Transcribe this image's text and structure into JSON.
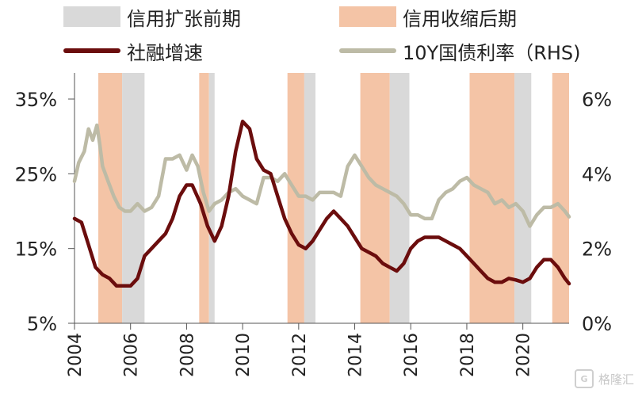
{
  "legend": {
    "expansion": "信用扩张前期",
    "contraction": "信用收缩后期",
    "social_financing": "社融增速",
    "bond_yield": "10Y国债利率（RHS)"
  },
  "colors": {
    "expansion": "#d9d9d9",
    "contraction": "#f4c4a6",
    "social_financing": "#6b0d0d",
    "bond_yield": "#bdbba6"
  },
  "watermark": {
    "text": "格隆汇"
  },
  "chart_data": {
    "type": "line",
    "title": "",
    "xlabel": "",
    "ylabel": "",
    "x_range": [
      2004.0,
      2021.65
    ],
    "x_ticks": [
      "2004",
      "2006",
      "2008",
      "2010",
      "2012",
      "2014",
      "2016",
      "2018",
      "2020"
    ],
    "x_tick_values": [
      2004,
      2006,
      2008,
      2010,
      2012,
      2014,
      2016,
      2018,
      2020
    ],
    "y_left": {
      "range": [
        5,
        38.5
      ],
      "ticks": [
        5,
        15,
        25,
        35
      ],
      "tick_labels": [
        "5%",
        "15%",
        "25%",
        "35%"
      ]
    },
    "y_right": {
      "range": [
        0,
        6.7
      ],
      "ticks": [
        0,
        2,
        4,
        6
      ],
      "tick_labels": [
        "0%",
        "2%",
        "4%",
        "6%"
      ]
    },
    "shaded_periods": [
      {
        "kind": "contraction",
        "start": 2004.85,
        "end": 2005.7
      },
      {
        "kind": "expansion",
        "start": 2005.7,
        "end": 2006.5
      },
      {
        "kind": "contraction",
        "start": 2008.45,
        "end": 2008.8
      },
      {
        "kind": "expansion",
        "start": 2008.8,
        "end": 2009.0
      },
      {
        "kind": "contraction",
        "start": 2011.6,
        "end": 2012.2
      },
      {
        "kind": "expansion",
        "start": 2012.2,
        "end": 2012.6
      },
      {
        "kind": "contraction",
        "start": 2014.2,
        "end": 2015.25
      },
      {
        "kind": "expansion",
        "start": 2015.25,
        "end": 2015.95
      },
      {
        "kind": "contraction",
        "start": 2018.1,
        "end": 2019.7
      },
      {
        "kind": "expansion",
        "start": 2019.7,
        "end": 2020.3
      },
      {
        "kind": "contraction",
        "start": 2021.05,
        "end": 2021.65
      }
    ],
    "series": [
      {
        "name": "社融增速",
        "axis": "left",
        "x": [
          2004.0,
          2004.25,
          2004.5,
          2004.75,
          2005.0,
          2005.25,
          2005.5,
          2005.75,
          2006.0,
          2006.25,
          2006.5,
          2006.75,
          2007.0,
          2007.25,
          2007.5,
          2007.75,
          2008.0,
          2008.2,
          2008.5,
          2008.75,
          2009.0,
          2009.25,
          2009.5,
          2009.75,
          2010.0,
          2010.25,
          2010.5,
          2010.75,
          2011.0,
          2011.25,
          2011.5,
          2011.75,
          2012.0,
          2012.25,
          2012.5,
          2012.75,
          2013.0,
          2013.25,
          2013.5,
          2013.75,
          2014.0,
          2014.25,
          2014.5,
          2014.75,
          2015.0,
          2015.25,
          2015.5,
          2015.75,
          2016.0,
          2016.25,
          2016.5,
          2016.75,
          2017.0,
          2017.25,
          2017.5,
          2017.75,
          2018.0,
          2018.25,
          2018.5,
          2018.75,
          2019.0,
          2019.25,
          2019.5,
          2019.75,
          2020.0,
          2020.25,
          2020.5,
          2020.75,
          2021.0,
          2021.25,
          2021.5,
          2021.65
        ],
        "values": [
          19,
          18.5,
          15.5,
          12.5,
          11.5,
          11,
          10,
          10,
          10,
          11,
          14,
          15,
          16,
          17,
          19,
          22,
          23.5,
          23.5,
          21,
          18,
          16,
          18,
          22,
          28,
          32,
          31,
          27,
          25.5,
          25,
          22,
          19,
          17,
          15.5,
          15,
          16,
          17.5,
          19,
          20,
          19,
          18,
          16.5,
          15,
          14.5,
          14,
          13,
          12.5,
          12,
          13,
          15,
          16,
          16.5,
          16.5,
          16.5,
          16,
          15.5,
          15,
          14,
          13,
          12,
          11,
          10.5,
          10.5,
          11,
          10.8,
          10.5,
          11,
          12.5,
          13.5,
          13.5,
          12.5,
          11,
          10.3
        ]
      },
      {
        "name": "10Y国债利率（RHS)",
        "axis": "right",
        "x": [
          2004.0,
          2004.15,
          2004.35,
          2004.5,
          2004.65,
          2004.8,
          2004.9,
          2005.0,
          2005.2,
          2005.4,
          2005.6,
          2005.8,
          2006.0,
          2006.25,
          2006.5,
          2006.75,
          2007.0,
          2007.25,
          2007.5,
          2007.75,
          2008.0,
          2008.2,
          2008.4,
          2008.6,
          2008.8,
          2009.0,
          2009.25,
          2009.5,
          2009.75,
          2010.0,
          2010.25,
          2010.5,
          2010.75,
          2011.0,
          2011.25,
          2011.5,
          2011.75,
          2012.0,
          2012.25,
          2012.5,
          2012.75,
          2013.0,
          2013.25,
          2013.5,
          2013.75,
          2014.0,
          2014.25,
          2014.5,
          2014.75,
          2015.0,
          2015.25,
          2015.5,
          2015.75,
          2016.0,
          2016.25,
          2016.5,
          2016.75,
          2017.0,
          2017.25,
          2017.5,
          2017.75,
          2018.0,
          2018.25,
          2018.5,
          2018.75,
          2019.0,
          2019.25,
          2019.5,
          2019.75,
          2020.0,
          2020.25,
          2020.5,
          2020.75,
          2021.0,
          2021.25,
          2021.5,
          2021.65
        ],
        "values": [
          3.8,
          4.3,
          4.6,
          5.2,
          4.9,
          5.3,
          4.8,
          4.2,
          3.8,
          3.4,
          3.1,
          3.0,
          3.0,
          3.2,
          3.0,
          3.1,
          3.4,
          4.4,
          4.4,
          4.5,
          4.1,
          4.5,
          4.2,
          3.5,
          3.0,
          3.2,
          3.3,
          3.5,
          3.6,
          3.4,
          3.3,
          3.2,
          3.9,
          3.9,
          3.8,
          4.0,
          3.7,
          3.4,
          3.4,
          3.3,
          3.5,
          3.5,
          3.5,
          3.4,
          4.2,
          4.5,
          4.2,
          3.9,
          3.7,
          3.6,
          3.5,
          3.4,
          3.2,
          2.9,
          2.9,
          2.8,
          2.8,
          3.3,
          3.5,
          3.6,
          3.8,
          3.9,
          3.7,
          3.6,
          3.5,
          3.2,
          3.3,
          3.1,
          3.2,
          3.0,
          2.6,
          2.9,
          3.1,
          3.1,
          3.2,
          3.0,
          2.85
        ]
      }
    ]
  }
}
